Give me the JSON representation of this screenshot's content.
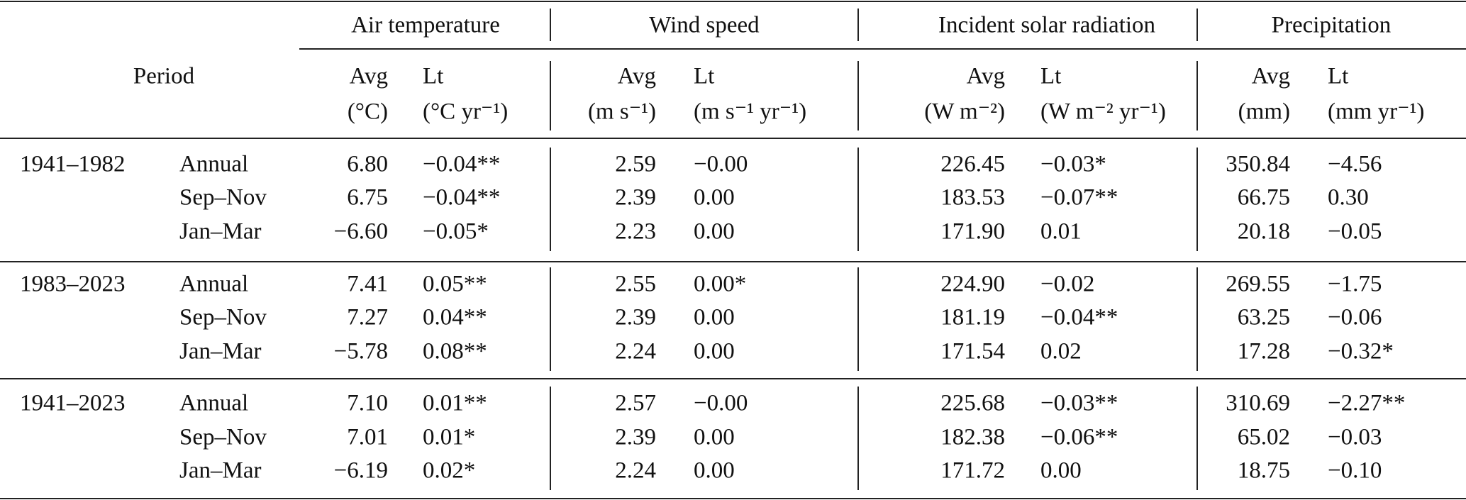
{
  "header": {
    "period_label": "Period",
    "groups": [
      {
        "title": "Air temperature",
        "avg_label": "Avg",
        "avg_unit": "(°C)",
        "lt_label": "Lt",
        "lt_unit": "(°C yr⁻¹)"
      },
      {
        "title": "Wind speed",
        "avg_label": "Avg",
        "avg_unit": "(m s⁻¹)",
        "lt_label": "Lt",
        "lt_unit": "(m s⁻¹ yr⁻¹)"
      },
      {
        "title": "Incident solar radiation",
        "avg_label": "Avg",
        "avg_unit": "(W m⁻²)",
        "lt_label": "Lt",
        "lt_unit": "(W m⁻² yr⁻¹)"
      },
      {
        "title": "Precipitation",
        "avg_label": "Avg",
        "avg_unit": "(mm)",
        "lt_label": "Lt",
        "lt_unit": "(mm yr⁻¹)"
      }
    ]
  },
  "sections": [
    {
      "period": "1941–1982",
      "rows": [
        {
          "season": "Annual",
          "values": [
            "6.80",
            "−0.04**",
            "2.59",
            "−0.00",
            "226.45",
            "−0.03*",
            "350.84",
            "−4.56"
          ]
        },
        {
          "season": "Sep–Nov",
          "values": [
            "6.75",
            "−0.04**",
            "2.39",
            "0.00",
            "183.53",
            "−0.07**",
            "66.75",
            "0.30"
          ]
        },
        {
          "season": "Jan–Mar",
          "values": [
            "−6.60",
            "−0.05*",
            "2.23",
            "0.00",
            "171.90",
            "0.01",
            "20.18",
            "−0.05"
          ]
        }
      ]
    },
    {
      "period": "1983–2023",
      "rows": [
        {
          "season": "Annual",
          "values": [
            "7.41",
            "0.05**",
            "2.55",
            "0.00*",
            "224.90",
            "−0.02",
            "269.55",
            "−1.75"
          ]
        },
        {
          "season": "Sep–Nov",
          "values": [
            "7.27",
            "0.04**",
            "2.39",
            "0.00",
            "181.19",
            "−0.04**",
            "63.25",
            "−0.06"
          ]
        },
        {
          "season": "Jan–Mar",
          "values": [
            "−5.78",
            "0.08**",
            "2.24",
            "0.00",
            "171.54",
            "0.02",
            "17.28",
            "−0.32*"
          ]
        }
      ]
    },
    {
      "period": "1941–2023",
      "rows": [
        {
          "season": "Annual",
          "values": [
            "7.10",
            "0.01**",
            "2.57",
            "−0.00",
            "225.68",
            "−0.03**",
            "310.69",
            "−2.27**"
          ]
        },
        {
          "season": "Sep–Nov",
          "values": [
            "7.01",
            "0.01*",
            "2.39",
            "0.00",
            "182.38",
            "−0.06**",
            "65.02",
            "−0.03"
          ]
        },
        {
          "season": "Jan–Mar",
          "values": [
            "−6.19",
            "0.02*",
            "2.24",
            "0.00",
            "171.72",
            "0.00",
            "18.75",
            "−0.10"
          ]
        }
      ]
    }
  ]
}
